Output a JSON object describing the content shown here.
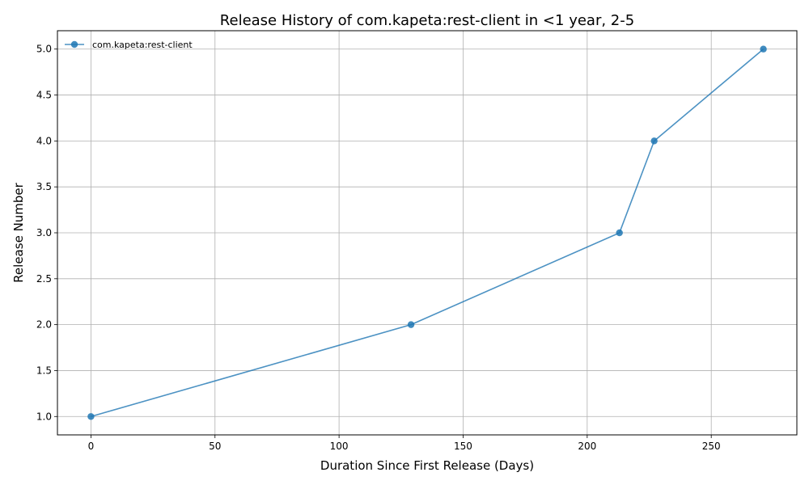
{
  "chart_data": {
    "type": "line",
    "title": "Release History of com.kapeta:rest-client in <1 year, 2-5",
    "xlabel": "Duration Since First Release (Days)",
    "ylabel": "Release Number",
    "xlim": [
      -13.5,
      284.5
    ],
    "ylim": [
      0.8,
      5.2
    ],
    "xticks": [
      0,
      50,
      100,
      150,
      200,
      250
    ],
    "xtick_labels": [
      "0",
      "50",
      "100",
      "150",
      "200",
      "250"
    ],
    "yticks": [
      1.0,
      1.5,
      2.0,
      2.5,
      3.0,
      3.5,
      4.0,
      4.5,
      5.0
    ],
    "ytick_labels": [
      "1.0",
      "1.5",
      "2.0",
      "2.5",
      "3.0",
      "3.5",
      "4.0",
      "4.5",
      "5.0"
    ],
    "grid": true,
    "legend_position": "top-left",
    "series": [
      {
        "name": "com.kapeta:rest-client",
        "color": "#1f77b4",
        "marker": "circle",
        "x": [
          0,
          129,
          213,
          227,
          271
        ],
        "y": [
          1,
          2,
          3,
          4,
          5
        ]
      }
    ]
  }
}
